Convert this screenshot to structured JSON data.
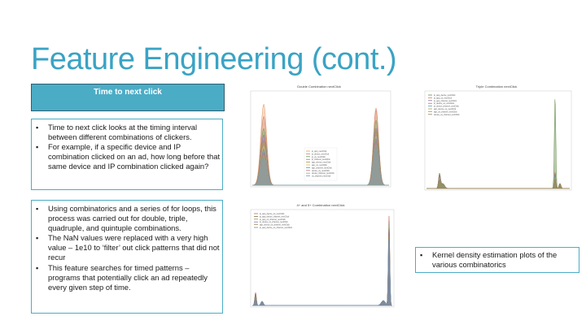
{
  "slide": {
    "title": "Feature Engineering (cont.)",
    "header_box": "Time to next click",
    "box1_bullets": [
      "Time to next click looks at the timing interval between different combinations of clickers.",
      "For example, if a specific device and IP combination clicked on an ad, how long before that same device and IP combination clicked again?"
    ],
    "box2_bullets": [
      "Using combinatorics and a series of for loops, this process was carried out for double, triple, quadruple, and quintuple combinations.",
      "The NaN values were replaced with a very high value – 1e10 to ‘filter’ out click patterns that did not recur",
      "This feature searches for timed patterns – programs that potentially click an ad repeatedly every given step of time."
    ],
    "box3_bullets": [
      "Kernel density estimation plots of the various combinatorics"
    ]
  },
  "plots": {
    "double": {
      "title": "Double Combination nextClick",
      "colors": [
        "#e69b63",
        "#d4816a",
        "#6b9e5b",
        "#9c6fb0",
        "#b08c4e",
        "#d1c36a",
        "#5a8fc8",
        "#c97070",
        "#8ab08a",
        "#7aa0b5"
      ],
      "legend": [
        "ip_app_nextClick",
        "ip_device_nextClick",
        "ip_os_nextClick",
        "ip_channel_nextClick",
        "app_device_nextClick",
        "app_os_nextClick",
        "app_channel_nextClick",
        "device_os_nextClick",
        "device_channel_nextClick",
        "os_channel_nextClick"
      ]
    },
    "triple": {
      "title": "Triple Combination nextClick",
      "colors": [
        "#6b8e4e",
        "#c48a55",
        "#8a6aa8",
        "#c26d6d",
        "#5a9ec8",
        "#b3a54f",
        "#7ab07a",
        "#a07850"
      ],
      "legend": [
        "ip_app_device_nextClick",
        "ip_app_os_nextClick",
        "ip_app_channel_nextClick",
        "ip_device_os_nextClick",
        "ip_device_channel_nextClick",
        "app_device_os_nextClick",
        "app_os_channel_nextClick",
        "device_os_channel_nextClick"
      ]
    },
    "quad": {
      "title": "4+ and 5+ Combination nextClick",
      "colors": [
        "#c26d55",
        "#8a6a50",
        "#6b9e5b",
        "#9c6fb0",
        "#b08c4e",
        "#5a8fc8"
      ],
      "legend": [
        "ip_app_device_os_nextClick",
        "ip_app_device_channel_nextClick",
        "ip_app_os_channel_nextClick",
        "ip_device_os_channel_nextClick",
        "app_device_os_channel_nextClick",
        "ip_app_device_os_channel_nextClick"
      ]
    }
  }
}
